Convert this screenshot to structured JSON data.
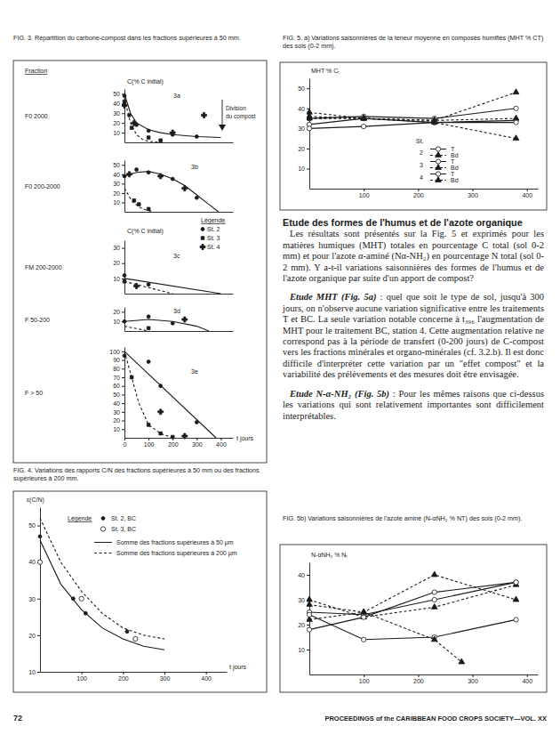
{
  "page": {
    "number": "72",
    "footer": "PROCEEDINGS of the CARIBBEAN FOOD CROPS SOCIETY—VOL. XX"
  },
  "captions": {
    "fig3": "FIG. 3. Répartition du carbone-compost dans les fractions supérieures à 50 mm.",
    "fig4": "FIG. 4. Variations des rapports C/N des fractions supérieures à 50 mm ou des fractions supérieures à 200 mm.",
    "fig5a": "FIG. 5. a) Variations saisonnières de la teneur moyenne en composés humifiés (MHT % CT) des sols (0-2 mm).",
    "fig5b": "FIG. 5b) Variations saisonnières de l'azote aminé (N-αNH₂ % NT) des sols (0-2 mm)."
  },
  "fig3": {
    "fraction_header": "Fraction",
    "division_label": [
      "Division",
      "du compost"
    ],
    "legend_title": "Légende"
  },
  "text": {
    "heading": "Etude des formes de l'humus et de l'azote organique",
    "paragraphs": [
      {
        "body": "Les résultats sont présentés sur la Fig. 5 et exprimés pour les matières humiques (MHT) totales en pourcentage C total (sol 0-2 mm) et pour l'azote α-aminé (Nα-NH₂) en pourcentage N total (sol 0-2 mm). Y a-t-il variations saisonnières des formes de l'humus et de l'azote organique par suite d'un apport de compost?"
      },
      {
        "lead": "Etude MHT (Fig. 5a)",
        "body": " : quel que soit le type de sol, jusqu'à 300 jours, on n'observe aucune variation significative entre les traitements T et BC. La seule variation notable concerne à t₃₉₆ l'augmentation de MHT pour le traitement BC, station 4. Cette augmentation relative ne correspond pas à la période de transfert (0-200 jours) de C-compost vers les fractions minérales et organo-minérales (cf. 3.2.b). Il est donc difficile d'interpréter cette variation par un \"effet compost\" et la variabilité des prélèvements et des mesures doit être envisagée."
      },
      {
        "lead": "Etude N-α-NH₂ (Fig. 5b)",
        "body": " : Pour les mêmes raisons que ci-dessus les variations qui sont relativement importantes sont difficilement interprétables."
      }
    ]
  },
  "chart_data": [
    {
      "type": "line",
      "panel_label": "3a",
      "row_label": "F0 2000",
      "y_label": "C(% C initial)",
      "color": "#1a1a1a",
      "xlim": [
        0,
        450
      ],
      "ylim": [
        0,
        55
      ],
      "yticks": [
        10,
        20,
        30,
        40,
        50
      ],
      "tick_labels": "y",
      "series": [
        {
          "type": "scatter",
          "marker": "dot",
          "x": [
            0,
            20,
            50,
            100,
            200,
            300
          ],
          "values": [
            48,
            28,
            18,
            12,
            8,
            6
          ]
        },
        {
          "type": "scatter",
          "marker": "square",
          "x": [
            0,
            30,
            100,
            150
          ],
          "values": [
            42,
            15,
            5,
            2
          ]
        },
        {
          "type": "scatter",
          "marker": "cross",
          "x": [
            0,
            40,
            200,
            330
          ],
          "values": [
            38,
            20,
            10,
            28
          ]
        },
        {
          "type": "line",
          "line_style": "solid",
          "x": [
            0,
            25,
            50,
            100,
            150,
            200,
            300,
            400
          ],
          "values": [
            50,
            30,
            20,
            13,
            10,
            8,
            6,
            5
          ]
        },
        {
          "type": "line",
          "line_style": "dashed",
          "x": [
            0,
            25,
            50,
            75,
            100,
            150
          ],
          "values": [
            45,
            20,
            8,
            3,
            1,
            0
          ]
        }
      ]
    },
    {
      "type": "line",
      "panel_label": "3b",
      "row_label": "F0 200-2000",
      "color": "#1a1a1a",
      "xlim": [
        0,
        450
      ],
      "ylim": [
        0,
        55
      ],
      "yticks": [
        10,
        20,
        30,
        40,
        50
      ],
      "tick_labels": "y",
      "series": [
        {
          "type": "scatter",
          "marker": "dot",
          "x": [
            0,
            50,
            100,
            200,
            300
          ],
          "values": [
            38,
            45,
            42,
            35,
            15
          ]
        },
        {
          "type": "scatter",
          "marker": "square",
          "x": [
            40,
            60,
            100
          ],
          "values": [
            12,
            8,
            3
          ]
        },
        {
          "type": "scatter",
          "marker": "cross",
          "x": [
            20,
            150,
            250
          ],
          "values": [
            40,
            38,
            25
          ]
        },
        {
          "type": "line",
          "line_style": "solid",
          "x": [
            0,
            50,
            100,
            150,
            200,
            250,
            300,
            350,
            390
          ],
          "values": [
            38,
            42,
            43,
            40,
            35,
            28,
            18,
            8,
            0
          ]
        },
        {
          "type": "line",
          "line_style": "dashed",
          "x": [
            0,
            30,
            60,
            90,
            120
          ],
          "values": [
            25,
            12,
            5,
            2,
            0
          ]
        }
      ]
    },
    {
      "type": "line",
      "panel_label": "3c",
      "row_label": "FM 200-2000",
      "y_label": "C(% C initial)",
      "color": "#1a1a1a",
      "xlim": [
        0,
        450
      ],
      "ylim": [
        0,
        35
      ],
      "yticks": [
        10,
        20,
        30
      ],
      "tick_labels": "y",
      "series": [
        {
          "type": "scatter",
          "name": "St. 2",
          "marker": "dot",
          "x": [
            0,
            100
          ],
          "values": [
            12,
            6
          ]
        },
        {
          "type": "scatter",
          "name": "St. 3",
          "marker": "square",
          "x": [
            0
          ],
          "values": [
            8
          ]
        },
        {
          "type": "scatter",
          "name": "St. 4",
          "marker": "cross",
          "x": [
            50
          ],
          "values": [
            5
          ]
        },
        {
          "type": "line",
          "line_style": "solid",
          "x": [
            0,
            400
          ],
          "values": [
            10,
            0
          ]
        },
        {
          "type": "line",
          "line_style": "dashed",
          "x": [
            0,
            200
          ],
          "values": [
            8,
            0
          ]
        }
      ]
    },
    {
      "type": "line",
      "panel_label": "3d",
      "row_label": "F 50-200",
      "color": "#1a1a1a",
      "xlim": [
        0,
        450
      ],
      "ylim": [
        0,
        25
      ],
      "yticks": [
        10,
        20
      ],
      "tick_labels": "y",
      "series": [
        {
          "type": "scatter",
          "marker": "dot",
          "x": [
            0,
            100,
            200
          ],
          "values": [
            10,
            15,
            8
          ]
        },
        {
          "type": "scatter",
          "marker": "square",
          "x": [
            100
          ],
          "values": [
            3
          ]
        },
        {
          "type": "scatter",
          "marker": "cross",
          "x": [
            250
          ],
          "values": [
            12
          ]
        },
        {
          "type": "line",
          "line_style": "solid",
          "x": [
            0,
            100,
            200,
            300,
            350
          ],
          "values": [
            10,
            12,
            10,
            5,
            0
          ]
        },
        {
          "type": "line",
          "line_style": "dashed",
          "x": [
            0,
            100
          ],
          "values": [
            5,
            0
          ]
        }
      ]
    },
    {
      "type": "line",
      "panel_label": "3e",
      "row_label": "F > 50",
      "x_label": "t jours",
      "color": "#1a1a1a",
      "xlim": [
        0,
        450
      ],
      "ylim": [
        0,
        105
      ],
      "xticks": [
        0,
        100,
        200,
        300,
        400
      ],
      "yticks": [
        10,
        20,
        30,
        40,
        50,
        60,
        70,
        80,
        90,
        100
      ],
      "series": [
        {
          "type": "scatter",
          "marker": "dot",
          "x": [
            0,
            100,
            150,
            300
          ],
          "values": [
            95,
            88,
            60,
            18
          ]
        },
        {
          "type": "scatter",
          "marker": "square",
          "x": [
            30,
            100,
            150,
            200
          ],
          "values": [
            70,
            15,
            5,
            1
          ]
        },
        {
          "type": "scatter",
          "marker": "cross",
          "x": [
            150,
            250
          ],
          "values": [
            30,
            2
          ]
        },
        {
          "type": "line",
          "line_style": "solid",
          "x": [
            0,
            380
          ],
          "values": [
            100,
            0
          ]
        },
        {
          "type": "line",
          "line_style": "dashed",
          "x": [
            0,
            30,
            60,
            100,
            150,
            200
          ],
          "values": [
            100,
            70,
            40,
            15,
            5,
            0
          ]
        }
      ]
    },
    {
      "type": "line",
      "y_label": "ε(C/N)",
      "x_label": "t jours",
      "legend_title": "Légende",
      "color": "#1a1a1a",
      "xlim": [
        0,
        450
      ],
      "ylim": [
        10,
        55
      ],
      "xticks": [
        100,
        200,
        300,
        400
      ],
      "yticks": [
        10,
        20,
        30,
        40,
        50
      ],
      "series": [
        {
          "type": "scatter",
          "name": "St. 2, BC",
          "marker": "dot",
          "x": [
            0,
            80,
            110,
            210,
            230
          ],
          "values": [
            47,
            30,
            26,
            21,
            19
          ]
        },
        {
          "type": "scatter",
          "name": "St. 3, BC",
          "marker": "circle-open",
          "x": [
            0,
            100,
            230
          ],
          "values": [
            40,
            30,
            19
          ]
        },
        {
          "type": "line",
          "name": "Somme des fractions supérieures à 50 μm",
          "line_style": "solid",
          "x": [
            0,
            50,
            100,
            150,
            200,
            250,
            300
          ],
          "values": [
            46,
            34,
            27,
            22,
            19,
            17,
            16
          ]
        },
        {
          "type": "line",
          "name": "Somme des fractions supérieures à 200 μm",
          "line_style": "dashed",
          "x": [
            0,
            50,
            100,
            150,
            200,
            250,
            300
          ],
          "values": [
            52,
            40,
            32,
            26,
            22,
            20,
            19
          ]
        }
      ]
    },
    {
      "type": "line",
      "y_label": "MHT % Cₜ",
      "legend_title": "St.",
      "legend_groups": [
        "2",
        "3",
        "4"
      ],
      "color": "#1a1a1a",
      "xlim": [
        0,
        420
      ],
      "ylim": [
        0,
        55
      ],
      "xticks": [
        100,
        200,
        300,
        400
      ],
      "yticks": [
        10,
        20,
        30,
        40,
        50
      ],
      "series": [
        {
          "name": "T",
          "marker": "circle-open",
          "line_style": "solid",
          "x": [
            0,
            100,
            230,
            380
          ],
          "values": [
            35,
            36,
            35,
            40
          ]
        },
        {
          "name": "Bd",
          "marker": "triangle",
          "line_style": "dashed",
          "x": [
            0,
            100,
            230,
            380
          ],
          "values": [
            38,
            35,
            34,
            48
          ]
        },
        {
          "name": "T",
          "marker": "circle-open",
          "line_style": "solid",
          "x": [
            0,
            100,
            230,
            380
          ],
          "values": [
            32,
            35,
            33,
            34
          ]
        },
        {
          "name": "Bd",
          "marker": "triangle",
          "line_style": "dashed",
          "x": [
            0,
            100,
            230,
            380
          ],
          "values": [
            35,
            35,
            34,
            35
          ]
        },
        {
          "name": "T",
          "marker": "circle-open",
          "line_style": "solid",
          "x": [
            0,
            100,
            230,
            380
          ],
          "values": [
            30,
            31,
            33,
            33
          ]
        },
        {
          "name": "Bd",
          "marker": "triangle",
          "line_style": "dashed",
          "x": [
            0,
            100,
            230,
            380
          ],
          "values": [
            36,
            35,
            33,
            25
          ]
        }
      ]
    },
    {
      "type": "line",
      "y_label": "N-αNH₂ % Nₜ",
      "color": "#1a1a1a",
      "xlim": [
        0,
        420
      ],
      "ylim": [
        0,
        45
      ],
      "xticks": [
        100,
        200,
        300,
        400
      ],
      "yticks": [
        10,
        20,
        30,
        40
      ],
      "series": [
        {
          "marker": "circle-open",
          "line_style": "solid",
          "x": [
            0,
            100,
            230,
            380
          ],
          "values": [
            25,
            24,
            30,
            37
          ]
        },
        {
          "marker": "triangle",
          "line_style": "dashed",
          "x": [
            0,
            100,
            230,
            380
          ],
          "values": [
            22,
            25,
            40,
            30
          ]
        },
        {
          "marker": "circle-open",
          "line_style": "solid",
          "x": [
            0,
            100,
            230,
            380
          ],
          "values": [
            24,
            14,
            15,
            22
          ]
        },
        {
          "marker": "triangle",
          "line_style": "dashed",
          "x": [
            0,
            100,
            230,
            380
          ],
          "values": [
            30,
            23,
            27,
            36
          ]
        },
        {
          "marker": "circle-open",
          "line_style": "solid",
          "x": [
            0,
            100,
            230,
            380
          ],
          "values": [
            18,
            23,
            33,
            37
          ]
        },
        {
          "marker": "triangle",
          "line_style": "dashed",
          "x": [
            0,
            100,
            230,
            280
          ],
          "values": [
            28,
            25,
            14,
            5
          ]
        }
      ]
    }
  ]
}
